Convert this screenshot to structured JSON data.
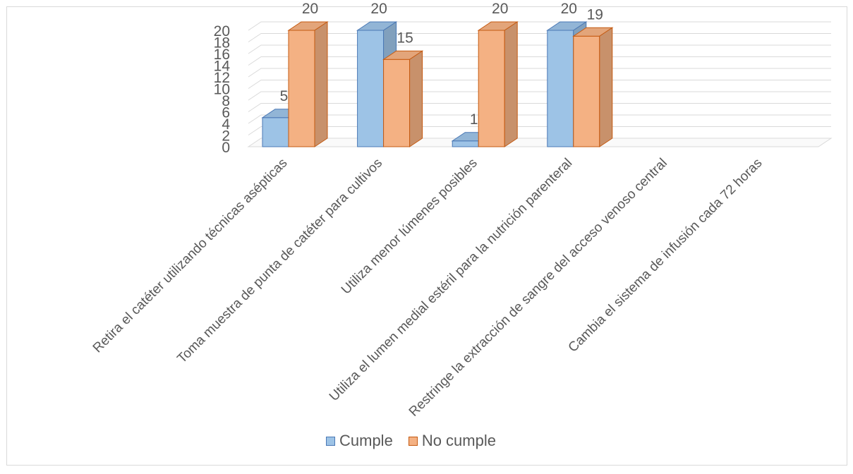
{
  "chart_data": {
    "type": "bar",
    "title": "",
    "categories": [
      "Retira el catéter utilizando técnicas asépticas",
      "Toma muestra de punta de catéter para cultivos",
      "Utiliza menor lúmenes posibles",
      "Utiliza el lumen medial estéril para la nutrición parenteral",
      "Restringe la extracción de sangre del acceso venoso central",
      "Cambia el  sistema de infusión cada 72 horas"
    ],
    "series": [
      {
        "name": "Cumple",
        "values": [
          5,
          20,
          1,
          20,
          null,
          null
        ],
        "color": "#9dc3e6",
        "edge": "#4a78b5"
      },
      {
        "name": "No cumple",
        "values": [
          20,
          15,
          20,
          19,
          null,
          null
        ],
        "color": "#f4b183",
        "edge": "#c55a11"
      }
    ],
    "data_labels": [
      [
        "5",
        "20",
        "1",
        "20",
        "",
        ""
      ],
      [
        "20",
        "15",
        "20",
        "19",
        "",
        ""
      ]
    ],
    "yticks": [
      "0",
      "2",
      "4",
      "6",
      "8",
      "10",
      "12",
      "14",
      "16",
      "18",
      "20"
    ],
    "ylim": [
      0,
      20
    ],
    "grid": true,
    "legend_position": "bottom",
    "chart_3d": true
  }
}
